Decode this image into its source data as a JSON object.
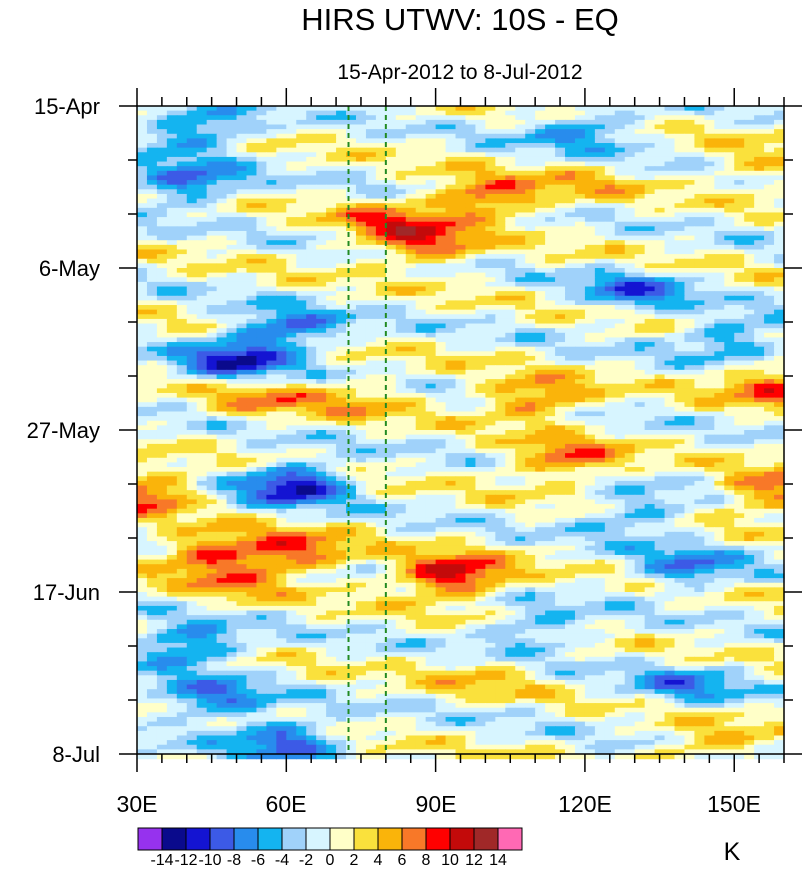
{
  "chart_data": {
    "type": "heatmap",
    "title": "HIRS UTWV: 10S - EQ",
    "subtitle": "15-Apr-2012 to 8-Jul-2012",
    "x_axis": {
      "range": [
        30,
        160
      ],
      "tick_values": [
        30,
        60,
        90,
        120,
        150
      ],
      "tick_labels": [
        "30E",
        "60E",
        "90E",
        "120E",
        "150E"
      ],
      "minor_step": 5
    },
    "y_axis": {
      "range_days": [
        0,
        84
      ],
      "tick_days": [
        0,
        21,
        42,
        63,
        84
      ],
      "tick_labels": [
        "15-Apr",
        "6-May",
        "27-May",
        "17-Jun",
        "8-Jul"
      ],
      "minor_step_days": 7
    },
    "reference_lines": [
      {
        "lon": 72.5,
        "color": "#228b22",
        "style": "dashed"
      },
      {
        "lon": 80,
        "color": "#228b22",
        "style": "dashed"
      }
    ],
    "colorbar": {
      "unit": "K",
      "levels": [
        -14,
        -12,
        -10,
        -8,
        -6,
        -4,
        -2,
        0,
        2,
        4,
        6,
        8,
        10,
        12,
        14
      ],
      "labels": [
        "-14",
        "-12",
        "-10",
        "-8",
        "-6",
        "-4",
        "-2",
        "0",
        "2",
        "4",
        "6",
        "8",
        "10",
        "12",
        "14"
      ],
      "colors": [
        "#9632ee",
        "#0a0a8c",
        "#1414d2",
        "#3c5ae6",
        "#288ced",
        "#14b4f0",
        "#a0d2fa",
        "#d7f5ff",
        "#ffffc8",
        "#fae13c",
        "#fab40a",
        "#f87828",
        "#ff0000",
        "#c30a0a",
        "#a02828",
        "#ff69b4"
      ]
    },
    "features": [
      {
        "lon": 31,
        "day": 50,
        "value": 9
      },
      {
        "lon": 45,
        "day": 58,
        "value": 9
      },
      {
        "lon": 62,
        "day": 58,
        "value": 8
      },
      {
        "lon": 93,
        "day": 61,
        "value": 12
      },
      {
        "lon": 100,
        "day": 12,
        "value": 9
      },
      {
        "lon": 116,
        "day": 46,
        "value": 8
      },
      {
        "lon": 110,
        "day": 38,
        "value": 8
      },
      {
        "lon": 158,
        "day": 36,
        "value": 8
      },
      {
        "lon": 158,
        "day": 50,
        "value": 8
      },
      {
        "lon": 88,
        "day": 18,
        "value": 8
      },
      {
        "lon": 80,
        "day": 15,
        "value": 6
      },
      {
        "lon": 75,
        "day": 38,
        "value": 4
      },
      {
        "lon": 55,
        "day": 38,
        "value": 5
      },
      {
        "lon": 62,
        "day": 49,
        "value": -12
      },
      {
        "lon": 40,
        "day": 10,
        "value": -9
      },
      {
        "lon": 42,
        "day": 3,
        "value": -8
      },
      {
        "lon": 60,
        "day": 29,
        "value": -9
      },
      {
        "lon": 50,
        "day": 33,
        "value": -10
      },
      {
        "lon": 120,
        "day": 3,
        "value": -7
      },
      {
        "lon": 130,
        "day": 24,
        "value": -7
      },
      {
        "lon": 150,
        "day": 30,
        "value": -7
      },
      {
        "lon": 140,
        "day": 60,
        "value": -7
      },
      {
        "lon": 40,
        "day": 70,
        "value": -9
      },
      {
        "lon": 45,
        "day": 77,
        "value": -8
      },
      {
        "lon": 60,
        "day": 82,
        "value": -9
      },
      {
        "lon": 140,
        "day": 75,
        "value": -6
      },
      {
        "lon": 110,
        "day": 68,
        "value": -6
      },
      {
        "lon": 130,
        "day": 53,
        "value": -6
      },
      {
        "lon": 120,
        "day": 10,
        "value": 3
      },
      {
        "lon": 100,
        "day": 74,
        "value": 3
      },
      {
        "lon": 50,
        "day": 62,
        "value": 4
      },
      {
        "lon": 145,
        "day": 83,
        "value": 5
      },
      {
        "lon": 155,
        "day": 8,
        "value": 4
      }
    ]
  }
}
